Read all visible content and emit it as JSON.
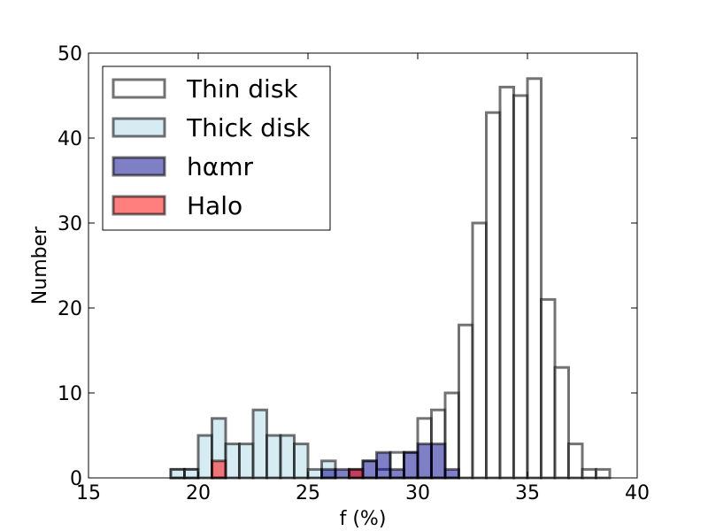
{
  "chart_data": {
    "type": "histogram",
    "xlabel": "f (%)",
    "ylabel": "Number",
    "xlim": [
      15,
      40
    ],
    "ylim": [
      0,
      50
    ],
    "xticks": [
      "15",
      "20",
      "25",
      "30",
      "35",
      "40"
    ],
    "yticks": [
      "0",
      "10",
      "20",
      "30",
      "40",
      "50"
    ],
    "bin_width": 0.625,
    "bin_start": 18.75,
    "legend_position": "top-left",
    "series": [
      {
        "name": "Thin disk",
        "fill": "#ffffff",
        "fill_opacity": 0.5,
        "counts": [
          1,
          1,
          0,
          0,
          0,
          0,
          0,
          0,
          0,
          0,
          0,
          0,
          0,
          0,
          2,
          1,
          3,
          3,
          7,
          8,
          10,
          18,
          30,
          43,
          46,
          45,
          47,
          21,
          13,
          4,
          1,
          1
        ]
      },
      {
        "name": "Thick disk",
        "fill": "#add8e6",
        "fill_opacity": 0.5,
        "counts": [
          1,
          1,
          5,
          7,
          4,
          4,
          8,
          5,
          5,
          4,
          1,
          2,
          0,
          0,
          0,
          0,
          0,
          0,
          0,
          0,
          0,
          0,
          0,
          0,
          0,
          0,
          0,
          0,
          0,
          0,
          0,
          0
        ]
      },
      {
        "name": "hαmr",
        "fill": "#00008b",
        "fill_opacity": 0.5,
        "counts": [
          0,
          0,
          0,
          0,
          0,
          0,
          0,
          0,
          0,
          0,
          0,
          1,
          1,
          1,
          2,
          3,
          1,
          3,
          4,
          4,
          1,
          0,
          0,
          0,
          0,
          0,
          0,
          0,
          0,
          0,
          0,
          0
        ]
      },
      {
        "name": "Halo",
        "fill": "#ff0000",
        "fill_opacity": 0.5,
        "counts": [
          0,
          0,
          0,
          2,
          0,
          0,
          0,
          0,
          0,
          0,
          0,
          0,
          0,
          1,
          0,
          0,
          0,
          0,
          0,
          0,
          0,
          0,
          0,
          0,
          0,
          0,
          0,
          0,
          0,
          0,
          0,
          0
        ]
      }
    ]
  }
}
